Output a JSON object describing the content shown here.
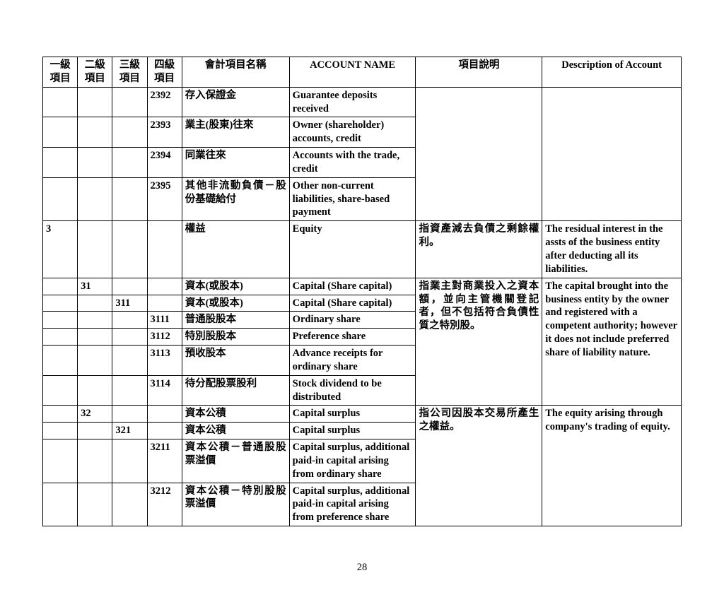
{
  "headers": {
    "h1": "一級\n項目",
    "h2": "二級\n項目",
    "h3": "三級\n項目",
    "h4": "四級\n項目",
    "h5": "會計項目名稱",
    "h6": "ACCOUNT NAME",
    "h7": "項目說明",
    "h8": "Description of Account"
  },
  "rows": {
    "r0": {
      "c4": "2392",
      "c5": "存入保證金",
      "c6": "Guarantee deposits received"
    },
    "r1": {
      "c4": "2393",
      "c5": "業主(股東)往來",
      "c6": "Owner (shareholder) accounts, credit"
    },
    "r2": {
      "c4": "2394",
      "c5": "同業往來",
      "c6": "Accounts with the trade, credit"
    },
    "r3": {
      "c4": "2395",
      "c5": "其他非流動負債－股份基礎給付",
      "c6": "Other non-current liabilities, share-based payment"
    },
    "r4": {
      "c1": "3",
      "c5": "權益",
      "c6": "Equity",
      "c7": "指資產減去負債之剩餘權利。",
      "c8": "The residual interest in the assts of the business entity after deducting all its liabilities."
    },
    "r5": {
      "c2": "31",
      "c5": "資本(或股本)",
      "c6": "Capital (Share capital)",
      "c7": "指業主對商業投入之資本額，並向主管機關登記者，但不包括符合負債性質之特別股。",
      "c8": "The capital brought into the business entity by the owner and registered with a competent authority; however it does not include preferred share of liability nature."
    },
    "r6": {
      "c3": "311",
      "c5": "資本(或股本)",
      "c6": "Capital (Share capital)"
    },
    "r7": {
      "c4": "3111",
      "c5": "普通股股本",
      "c6": "Ordinary share"
    },
    "r8": {
      "c4": "3112",
      "c5": "特別股股本",
      "c6": "Preference share"
    },
    "r9": {
      "c4": "3113",
      "c5": "預收股本",
      "c6": "Advance receipts for ordinary share"
    },
    "r10": {
      "c4": "3114",
      "c5": "待分配股票股利",
      "c6": "Stock dividend to be distributed"
    },
    "r11": {
      "c2": "32",
      "c5": "資本公積",
      "c6": "Capital surplus",
      "c7": "指公司因股本交易所產生之權益。",
      "c8": "The equity arising through company's trading of equity."
    },
    "r12": {
      "c3": "321",
      "c5": "資本公積",
      "c6": "Capital surplus"
    },
    "r13": {
      "c4": "3211",
      "c5": "資本公積－普通股股票溢價",
      "c6": "Capital surplus, additional paid-in capital arising from ordinary share"
    },
    "r14": {
      "c4": "3212",
      "c5": "資本公積－特別股股票溢價",
      "c6": "Capital surplus, additional paid-in capital arising from preference share"
    }
  },
  "pagenum": "28"
}
